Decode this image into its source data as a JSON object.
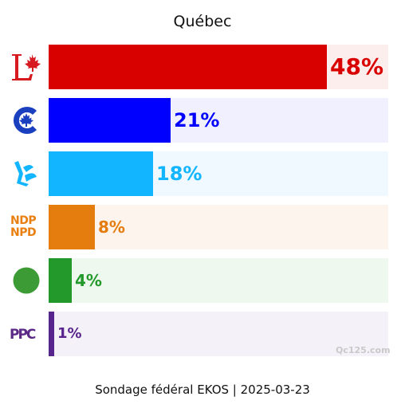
{
  "chart_data": {
    "type": "bar",
    "orientation": "horizontal",
    "title": "Québec",
    "categories": [
      "LPC",
      "CPC",
      "BQ",
      "NDP",
      "GPC",
      "PPC"
    ],
    "values": [
      48,
      21,
      18,
      8,
      4,
      1
    ],
    "value_labels": [
      "48%",
      "21%",
      "18%",
      "8%",
      "4%",
      "1%"
    ],
    "colors": [
      "#d90000",
      "#0000ff",
      "#12b5ff",
      "#e47c0e",
      "#22992a",
      "#58258f"
    ],
    "track_colors": [
      "#fdeeee",
      "#f0f0ff",
      "#eff9ff",
      "#fdf4ee",
      "#eef8ef",
      "#f4f1f8"
    ],
    "xlim": [
      0,
      100
    ],
    "logos": [
      {
        "icon": "liberal-logo-icon"
      },
      {
        "icon": "conservative-logo-icon"
      },
      {
        "icon": "bloc-logo-icon"
      },
      {
        "icon": "ndp-logo-icon",
        "text_top": "NDP",
        "text_bottom": "NPD"
      },
      {
        "icon": "green-logo-icon"
      },
      {
        "icon": "ppc-logo-icon",
        "text": "PPC"
      }
    ]
  },
  "footer": "Sondage fédéral EKOS | 2025-03-23",
  "watermark": "Qc125.com"
}
